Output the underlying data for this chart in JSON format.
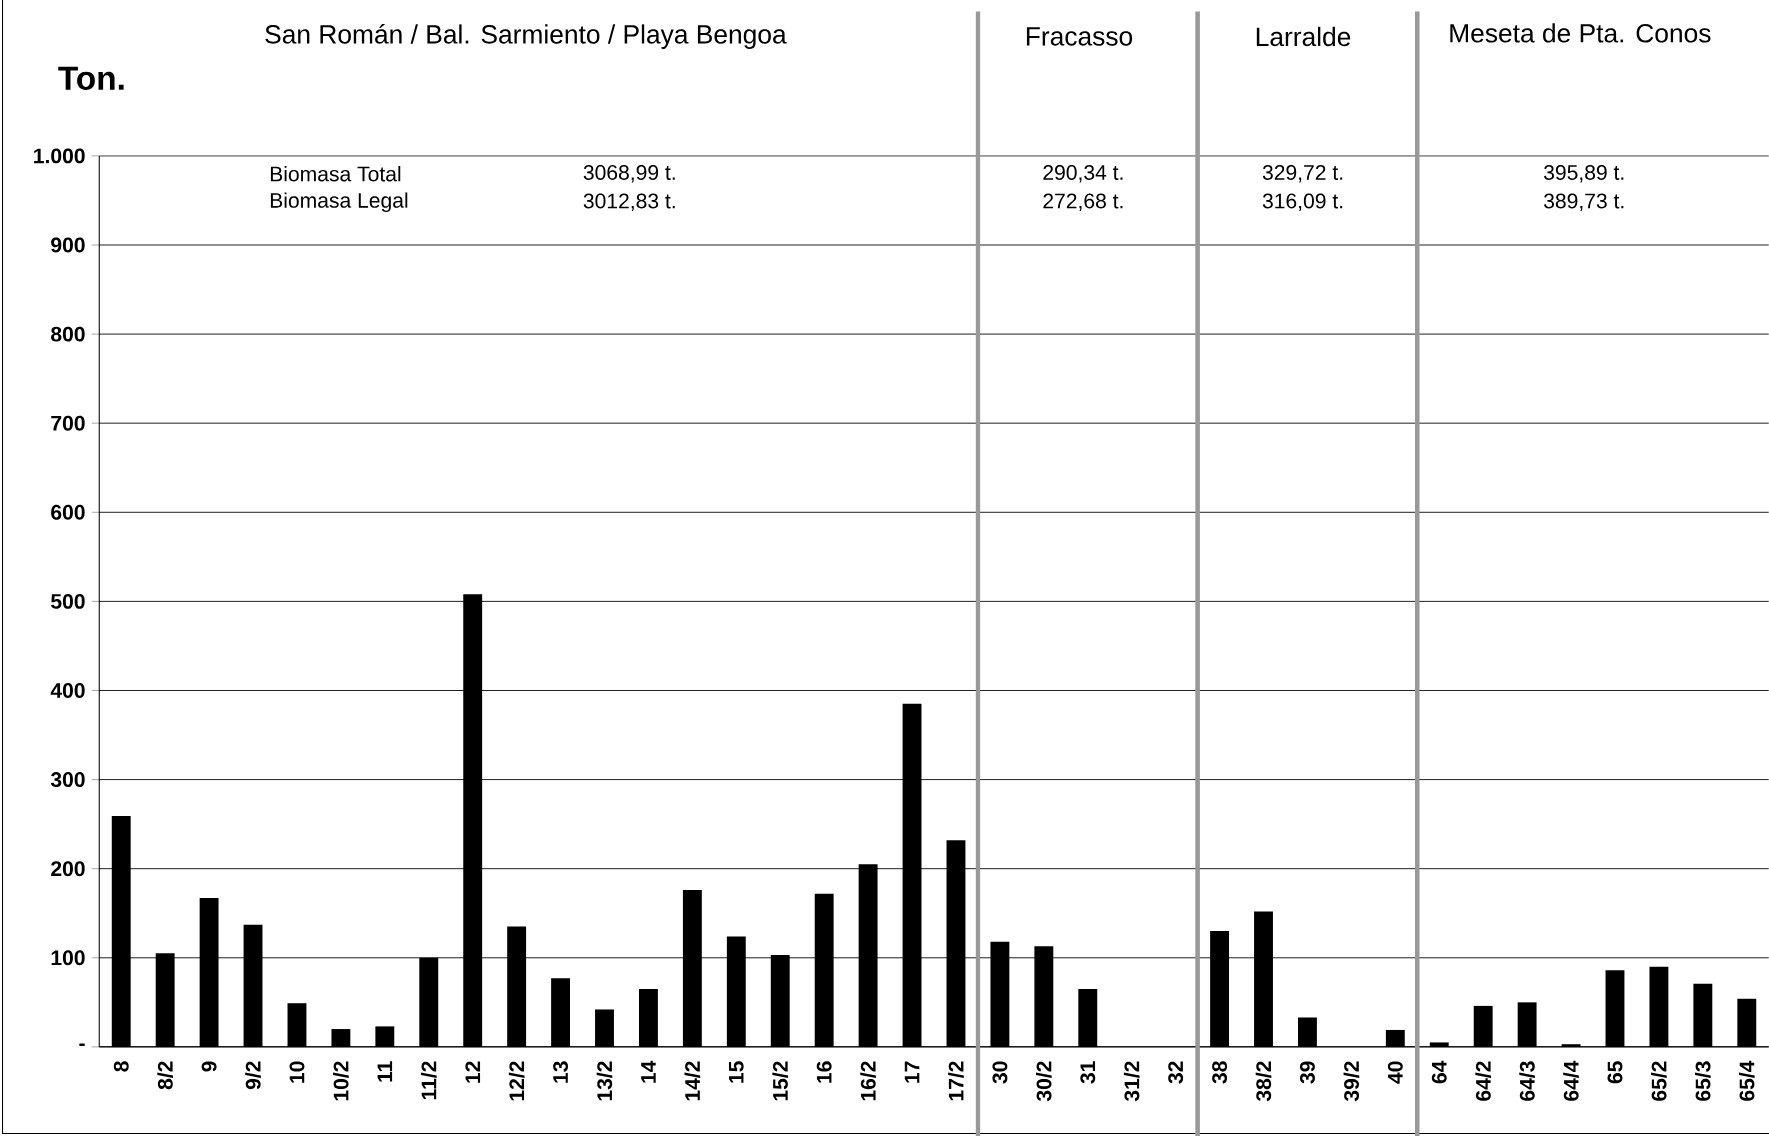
{
  "chart_data": {
    "type": "bar",
    "ylabel": "Ton.",
    "categories": [
      "8",
      "8/2",
      "9",
      "9/2",
      "10",
      "10/2",
      "11",
      "11/2",
      "12",
      "12/2",
      "13",
      "13/2",
      "14",
      "14/2",
      "15",
      "15/2",
      "16",
      "16/2",
      "17",
      "17/2",
      "30",
      "30/2",
      "31",
      "31/2",
      "32",
      "38",
      "38/2",
      "39",
      "39/2",
      "40",
      "64",
      "64/2",
      "64/3",
      "64/4",
      "65",
      "65/2",
      "65/3",
      "65/4"
    ],
    "values": [
      259,
      105,
      167,
      137,
      49,
      20,
      23,
      100,
      508,
      135,
      77,
      42,
      65,
      176,
      124,
      103,
      172,
      205,
      385,
      232,
      118,
      113,
      65,
      0,
      0,
      130,
      152,
      33,
      0,
      19,
      5,
      46,
      50,
      3,
      86,
      90,
      71,
      54
    ],
    "color": "#000000",
    "ylim": [
      0,
      1000
    ],
    "yticks": [
      {
        "value": 0,
        "label": "-"
      },
      100,
      200,
      300,
      400,
      500,
      600,
      700,
      800,
      900,
      {
        "value": 1000,
        "label": "1.000"
      }
    ],
    "grid": "y",
    "annotations": [
      "San Román / Bal. Sarmiento / Playa Bengoa",
      "Fracasso",
      "Larralde",
      "Meseta de Pta. Conos",
      "Biomasa Total",
      "Biomasa Legal",
      "3068,99 t.",
      "3012,83 t.",
      "290,34 t.",
      "272,68 t.",
      "329,72 t.",
      "316,09 t.",
      "395,89 t.",
      "389,73 t."
    ]
  }
}
